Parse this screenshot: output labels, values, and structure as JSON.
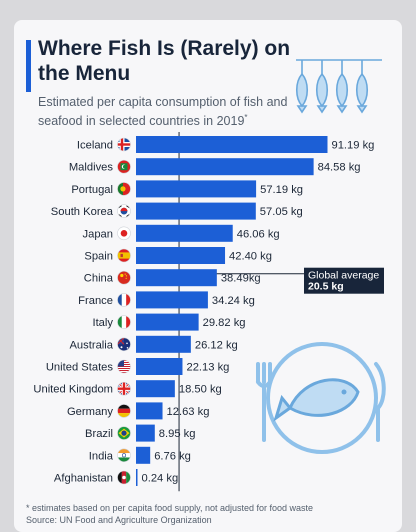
{
  "header": {
    "title": "Where Fish Is (Rarely) on the Menu",
    "subtitle": "Estimated per capita consumption of fish and seafood in selected countries in 2019",
    "subtitle_mark": "*"
  },
  "footer": {
    "note": "* estimates based on per capita food supply, not adjusted for food waste",
    "source": "Source: UN Food and Agriculture Organization"
  },
  "colors": {
    "bar": "#1c5fd6",
    "title": "#18253a",
    "accent": "#1c5fd6",
    "annotation_bg": "#18253a",
    "decor": "#7fb8e6"
  },
  "chart_data": {
    "type": "bar",
    "orientation": "horizontal",
    "unit": "kg",
    "xlim": [
      0,
      100
    ],
    "grid": false,
    "categories": [
      "Iceland",
      "Maldives",
      "Portugal",
      "South Korea",
      "Japan",
      "Spain",
      "China",
      "France",
      "Italy",
      "Australia",
      "United States",
      "United Kingdom",
      "Germany",
      "Brazil",
      "India",
      "Afghanistan"
    ],
    "values": [
      91.19,
      84.58,
      57.19,
      57.05,
      46.06,
      42.4,
      38.49,
      34.24,
      29.82,
      26.12,
      22.13,
      18.5,
      12.63,
      8.95,
      6.76,
      0.24
    ],
    "value_labels": [
      "91.19 kg",
      "84.58 kg",
      "57.19 kg",
      "57.05 kg",
      "46.06 kg",
      "42.40 kg",
      "38.49kg",
      "34.24 kg",
      "29.82 kg",
      "26.12 kg",
      "22.13 kg",
      "18.50 kg",
      "12.63 kg",
      "8.95 kg",
      "6.76 kg",
      "0.24 kg"
    ],
    "flags": [
      "iceland-flag-icon",
      "maldives-flag-icon",
      "portugal-flag-icon",
      "south-korea-flag-icon",
      "japan-flag-icon",
      "spain-flag-icon",
      "china-flag-icon",
      "france-flag-icon",
      "italy-flag-icon",
      "australia-flag-icon",
      "united-states-flag-icon",
      "united-kingdom-flag-icon",
      "germany-flag-icon",
      "brazil-flag-icon",
      "india-flag-icon",
      "afghanistan-flag-icon"
    ],
    "reference_line": {
      "value": 20.5,
      "label": "Global average",
      "value_label": "20.5 kg"
    }
  }
}
